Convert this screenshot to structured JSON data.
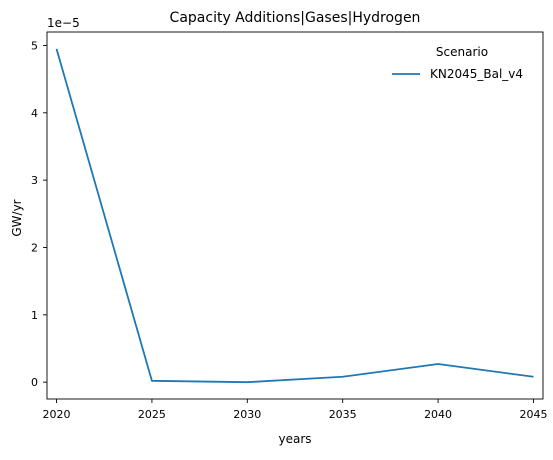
{
  "chart_data": {
    "type": "line",
    "title": "Capacity Additions|Gases|Hydrogen",
    "xlabel": "years",
    "ylabel": "GW/yr",
    "y_offset_label": "1e−5",
    "x": [
      2020,
      2025,
      2030,
      2035,
      2040,
      2045
    ],
    "x_ticks": [
      2020,
      2025,
      2030,
      2035,
      2040,
      2045
    ],
    "y_ticks": [
      0,
      1,
      2,
      3,
      4,
      5
    ],
    "y_scale_multiplier": 1e-05,
    "xlim": [
      2019.5,
      2045.5
    ],
    "ylim": [
      -0.25,
      5.2
    ],
    "grid": false,
    "legend": {
      "title": "Scenario",
      "placement": "top-right"
    },
    "series": [
      {
        "name": "KN2045_Bal_v4",
        "color": "#1f77b4",
        "values": [
          4.95,
          0.02,
          0.0,
          0.08,
          0.27,
          0.08
        ]
      }
    ]
  }
}
